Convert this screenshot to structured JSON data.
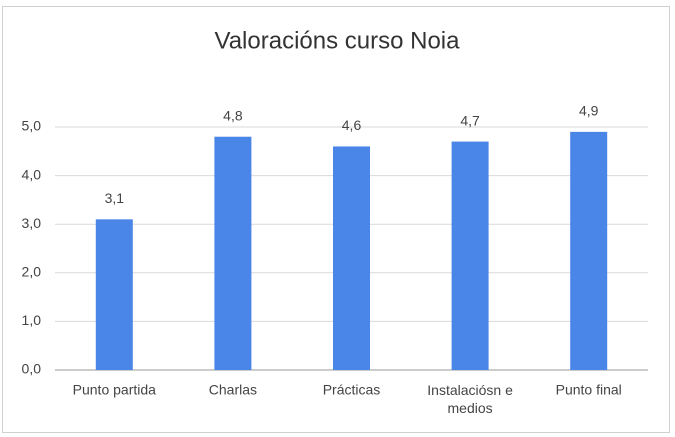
{
  "chart_data": {
    "type": "bar",
    "title": "Valoracións curso Noia",
    "categories": [
      "Punto partida",
      "Charlas",
      "Prácticas",
      "Instalaciósn e medios",
      "Punto final"
    ],
    "values": [
      3.1,
      4.8,
      4.6,
      4.7,
      4.9
    ],
    "value_labels": [
      "3,1",
      "4,8",
      "4,6",
      "4,7",
      "4,9"
    ],
    "color": "#4a86e8",
    "ylim": [
      0,
      5
    ],
    "yticks": [
      {
        "value": 0,
        "label": "0,0"
      },
      {
        "value": 1,
        "label": "1,0"
      },
      {
        "value": 2,
        "label": "2,0"
      },
      {
        "value": 3,
        "label": "3,0"
      },
      {
        "value": 4,
        "label": "4,0"
      },
      {
        "value": 5,
        "label": "5,0"
      }
    ],
    "grid": true
  }
}
